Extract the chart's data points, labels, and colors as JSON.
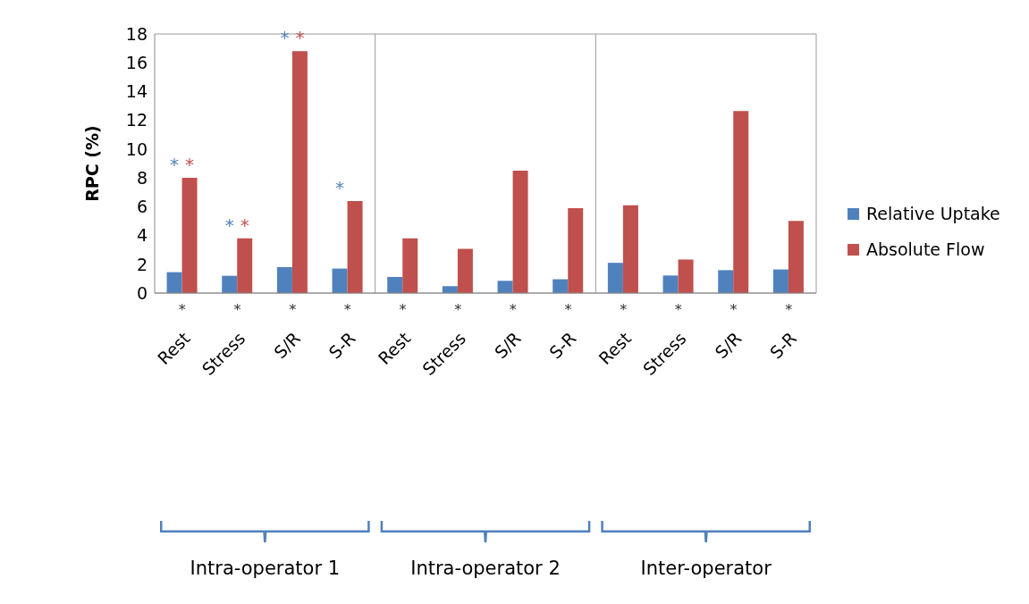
{
  "chart_data": {
    "type": "bar",
    "ylabel": "RPC (%)",
    "categories": [
      "Rest",
      "Stress",
      "S/R",
      "S-R",
      "Rest",
      "Stress",
      "S/R",
      "S-R",
      "Rest",
      "Stress",
      "S/R",
      "S-R"
    ],
    "series": [
      {
        "name": "Relative Uptake",
        "color": "#4f81bd",
        "values": [
          1.45,
          1.2,
          1.8,
          1.7,
          1.12,
          0.48,
          0.85,
          0.96,
          2.1,
          1.22,
          1.59,
          1.64
        ],
        "value_labels": [
          "*",
          "*",
          "*",
          "*",
          null,
          null,
          null,
          null,
          null,
          null,
          null,
          null
        ]
      },
      {
        "name": "Absolute Flow",
        "color": "#c0504d",
        "values": [
          8.0,
          3.8,
          16.8,
          6.4,
          3.8,
          3.07,
          8.5,
          5.9,
          6.1,
          2.33,
          12.64,
          5.01
        ],
        "value_labels": [
          "*",
          "*",
          "*",
          null,
          null,
          null,
          null,
          null,
          null,
          null,
          null,
          null
        ]
      }
    ],
    "ylim": [
      0,
      18
    ],
    "yticks": [
      0,
      2,
      4,
      6,
      8,
      10,
      12,
      14,
      16,
      18
    ],
    "grid": true,
    "legend": "right",
    "annotations": [
      "*",
      "*",
      "*",
      "*",
      "*",
      "*",
      "*",
      "*",
      "*",
      "*",
      "*",
      "*",
      "Intra-operator 1",
      "Intra-operator 2",
      "Inter-operator"
    ]
  }
}
